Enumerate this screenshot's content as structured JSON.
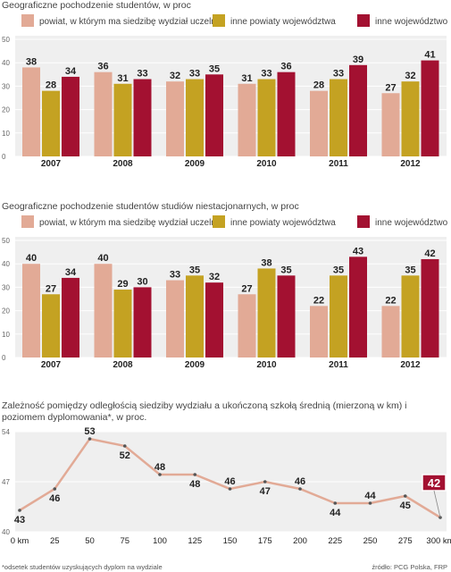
{
  "colors": {
    "series1": "#e2aa96",
    "series2": "#c4a222",
    "series3": "#a31131",
    "line": "#e2aa96",
    "panel_bg": "#efefef",
    "last_point_box": "#a31131"
  },
  "chart_data": [
    {
      "type": "bar",
      "title": "Geograficzne pochodzenie studentów, w proc",
      "categories": [
        "2007",
        "2008",
        "2009",
        "2010",
        "2011",
        "2012"
      ],
      "series": [
        {
          "name": "powiat, w którym ma siedzibę wydział uczelni",
          "values": [
            38,
            36,
            32,
            31,
            28,
            27
          ]
        },
        {
          "name": "inne powiaty województwa",
          "values": [
            28,
            31,
            33,
            33,
            33,
            32
          ]
        },
        {
          "name": "inne województwo",
          "values": [
            34,
            33,
            35,
            36,
            39,
            41
          ]
        }
      ],
      "ylim": [
        0,
        50
      ],
      "yticks": [
        0,
        10,
        20,
        30,
        40,
        50
      ],
      "legend": "top",
      "grid": true
    },
    {
      "type": "bar",
      "title": "Geograficzne pochodzenie studentów studiów niestacjonarnych, w proc",
      "categories": [
        "2007",
        "2008",
        "2009",
        "2010",
        "2011",
        "2012"
      ],
      "series": [
        {
          "name": "powiat, w którym ma siedzibę wydział uczelni",
          "values": [
            40,
            40,
            33,
            27,
            22,
            22
          ]
        },
        {
          "name": "inne powiaty województwa",
          "values": [
            27,
            29,
            35,
            38,
            35,
            35
          ]
        },
        {
          "name": "inne województwo",
          "values": [
            34,
            30,
            32,
            35,
            43,
            42
          ]
        }
      ],
      "ylim": [
        0,
        50
      ],
      "yticks": [
        0,
        10,
        20,
        30,
        40,
        50
      ],
      "legend": "top",
      "grid": true
    },
    {
      "type": "line",
      "title": "Zależność pomiędzy odległością siedziby wydziału a ukończoną szkołą średnią (mierzoną w km) i poziomem dyplomowania*, w proc.",
      "x": [
        "0 km",
        "25",
        "50",
        "75",
        "100",
        "125",
        "150",
        "175",
        "200",
        "225",
        "250",
        "275",
        "300 km"
      ],
      "values": [
        43,
        46,
        53,
        52,
        48,
        48,
        46,
        47,
        46,
        44,
        44,
        45,
        42
      ],
      "ylim": [
        40,
        54
      ],
      "yticks": [
        40,
        47,
        54
      ],
      "grid": true,
      "highlight": "last"
    }
  ],
  "footnote": "*odsetek studentów uzyskujących dyplom na wydziale",
  "source": "źródło: PCG Polska, FRP"
}
